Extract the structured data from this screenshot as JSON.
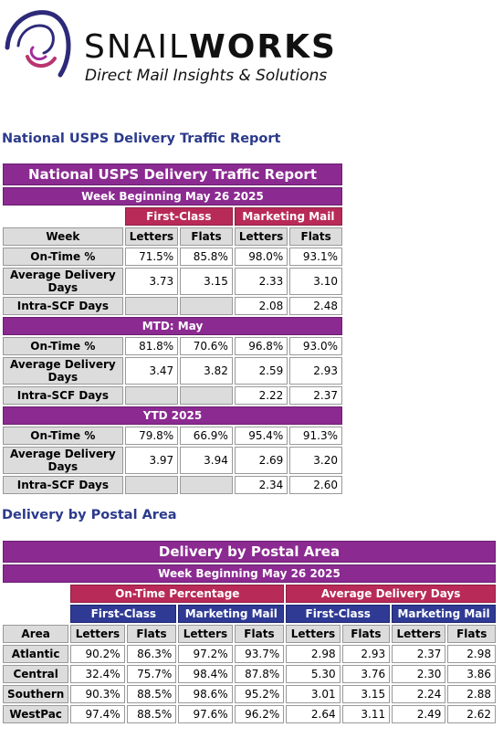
{
  "brand": {
    "name_light": "SNAIL",
    "name_bold": "WORKS",
    "tagline": "Direct Mail Insights & Solutions"
  },
  "colors": {
    "purple": "#8b2a91",
    "crimson": "#b82a58",
    "navy": "#2e3a94",
    "heading": "#2b3a8c"
  },
  "national": {
    "heading": "National USPS Delivery Traffic Report",
    "title": "National USPS Delivery Traffic Report",
    "week_label": "Week Beginning May 26 2025",
    "class_headers": [
      "First-Class",
      "Marketing Mail"
    ],
    "col_headers": [
      "Week",
      "Letters",
      "Flats",
      "Letters",
      "Flats"
    ],
    "mtd_label": "MTD: May",
    "ytd_label": "YTD 2025",
    "week_rows": [
      {
        "label": "On-Time %",
        "values": [
          "71.5%",
          "85.8%",
          "98.0%",
          "93.1%"
        ]
      },
      {
        "label": "Average Delivery Days",
        "values": [
          "3.73",
          "3.15",
          "2.33",
          "3.10"
        ]
      },
      {
        "label": "Intra-SCF Days",
        "values": [
          "",
          "",
          "2.08",
          "2.48"
        ]
      }
    ],
    "mtd_rows": [
      {
        "label": "On-Time %",
        "values": [
          "81.8%",
          "70.6%",
          "96.8%",
          "93.0%"
        ]
      },
      {
        "label": "Average Delivery Days",
        "values": [
          "3.47",
          "3.82",
          "2.59",
          "2.93"
        ]
      },
      {
        "label": "Intra-SCF Days",
        "values": [
          "",
          "",
          "2.22",
          "2.37"
        ]
      }
    ],
    "ytd_rows": [
      {
        "label": "On-Time %",
        "values": [
          "79.8%",
          "66.9%",
          "95.4%",
          "91.3%"
        ]
      },
      {
        "label": "Average Delivery Days",
        "values": [
          "3.97",
          "3.94",
          "2.69",
          "3.20"
        ]
      },
      {
        "label": "Intra-SCF Days",
        "values": [
          "",
          "",
          "2.34",
          "2.60"
        ]
      }
    ]
  },
  "postal": {
    "heading": "Delivery by Postal Area",
    "title": "Delivery by Postal Area",
    "week_label": "Week Beginning May 26 2025",
    "group_headers": [
      "On-Time Percentage",
      "Average Delivery Days"
    ],
    "class_headers": [
      "First-Class",
      "Marketing Mail",
      "First-Class",
      "Marketing Mail"
    ],
    "col_headers": [
      "Area",
      "Letters",
      "Flats",
      "Letters",
      "Flats",
      "Letters",
      "Flats",
      "Letters",
      "Flats"
    ],
    "rows": [
      {
        "area": "Atlantic",
        "values": [
          "90.2%",
          "86.3%",
          "97.2%",
          "93.7%",
          "2.98",
          "2.93",
          "2.37",
          "2.98"
        ]
      },
      {
        "area": "Central",
        "values": [
          "32.4%",
          "75.7%",
          "98.4%",
          "87.8%",
          "5.30",
          "3.76",
          "2.30",
          "3.86"
        ]
      },
      {
        "area": "Southern",
        "values": [
          "90.3%",
          "88.5%",
          "98.6%",
          "95.2%",
          "3.01",
          "3.15",
          "2.24",
          "2.88"
        ]
      },
      {
        "area": "WestPac",
        "values": [
          "97.4%",
          "88.5%",
          "97.6%",
          "96.2%",
          "2.64",
          "3.11",
          "2.49",
          "2.62"
        ]
      }
    ]
  }
}
